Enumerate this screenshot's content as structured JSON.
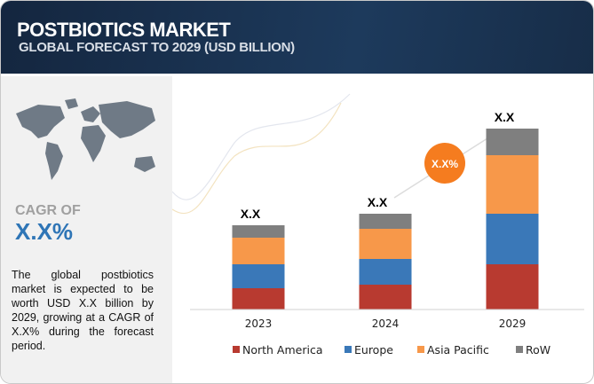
{
  "header": {
    "title": "POSTBIOTICS MARKET",
    "subtitle": "GLOBAL FORECAST TO 2029 (USD BILLION)"
  },
  "left_panel": {
    "cagr_label": "CAGR OF",
    "cagr_value": "X.X%",
    "description": "The global postbiotics market is expected to be worth USD X.X billion by 2029, growing at a CAGR of X.X% during the forecast period."
  },
  "chart_data": {
    "type": "bar",
    "stacked": true,
    "categories": [
      "2023",
      "2024",
      "2029"
    ],
    "series": [
      {
        "name": "North America",
        "color": "#b83a30",
        "values": [
          24,
          28,
          51
        ]
      },
      {
        "name": "Europe",
        "color": "#3a78b8",
        "values": [
          27,
          29,
          57
        ]
      },
      {
        "name": "Asia Pacific",
        "color": "#f7984a",
        "values": [
          30,
          34,
          66
        ]
      },
      {
        "name": "RoW",
        "color": "#7f7f7f",
        "values": [
          14,
          17,
          30
        ]
      }
    ],
    "total_labels": [
      "X.X",
      "X.X",
      "X.X"
    ],
    "cagr_badge": "X.X%",
    "cagr_badge_color": "#f57c1f",
    "legend_position": "bottom",
    "grid": false
  }
}
